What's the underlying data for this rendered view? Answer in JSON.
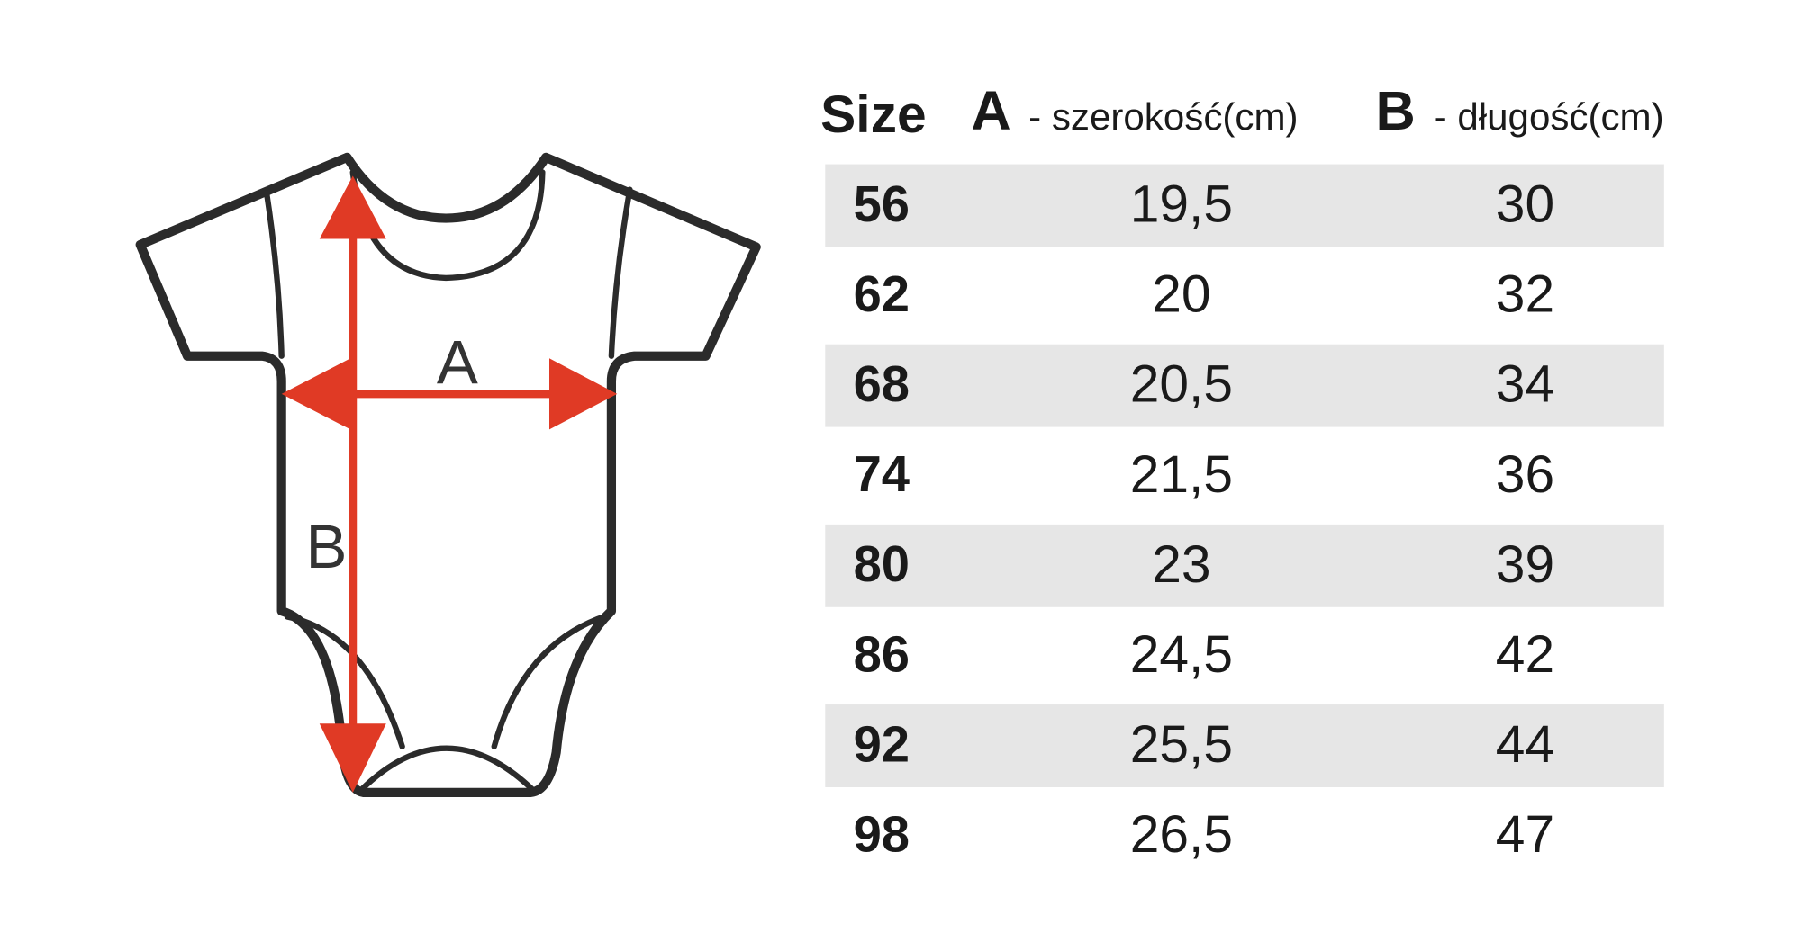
{
  "diagram": {
    "label_a": "A",
    "label_b": "B"
  },
  "table": {
    "header": {
      "size": "Size",
      "a_letter": "A",
      "a_text": "- szerokość(cm)",
      "b_letter": "B",
      "b_text": "- długość(cm)"
    },
    "rows": [
      [
        "56",
        "19,5",
        "30"
      ],
      [
        "62",
        "20",
        "32"
      ],
      [
        "68",
        "20,5",
        "34"
      ],
      [
        "74",
        "21,5",
        "36"
      ],
      [
        "80",
        "23",
        "39"
      ],
      [
        "86",
        "24,5",
        "42"
      ],
      [
        "92",
        "25,5",
        "44"
      ],
      [
        "98",
        "26,5",
        "47"
      ]
    ]
  }
}
